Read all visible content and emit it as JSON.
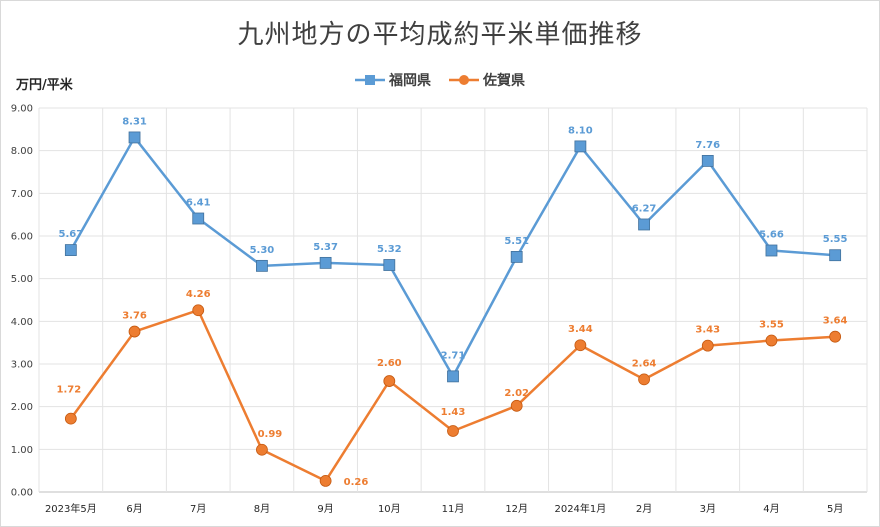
{
  "chart_data": {
    "type": "line",
    "title": "九州地方の平均成約平米単価推移",
    "ylabel": "万円/平米",
    "xlabel": "",
    "ylim": [
      0,
      9
    ],
    "yticks": [
      "0.00",
      "1.00",
      "2.00",
      "3.00",
      "4.00",
      "5.00",
      "6.00",
      "7.00",
      "8.00",
      "9.00"
    ],
    "grid": true,
    "legend_position": "top",
    "categories": [
      "2023年5月",
      "6月",
      "7月",
      "8月",
      "9月",
      "10月",
      "11月",
      "12月",
      "2024年1月",
      "2月",
      "3月",
      "4月",
      "5月"
    ],
    "series": [
      {
        "name": "福岡県",
        "color": "#5b9bd5",
        "marker": "square",
        "values": [
          5.67,
          8.31,
          6.41,
          5.3,
          5.37,
          5.32,
          2.71,
          5.51,
          8.1,
          6.27,
          7.76,
          5.66,
          5.55
        ],
        "labels": [
          "5.67",
          "8.31",
          "6.41",
          "5.30",
          "5.37",
          "5.32",
          "2.71",
          "5.51",
          "8.10",
          "6.27",
          "7.76",
          "5.66",
          "5.55"
        ]
      },
      {
        "name": "佐賀県",
        "color": "#ed7d31",
        "marker": "circle",
        "values": [
          1.72,
          3.76,
          4.26,
          0.99,
          0.26,
          2.6,
          1.43,
          2.02,
          3.44,
          2.64,
          3.43,
          3.55,
          3.64
        ],
        "labels": [
          "1.72",
          "3.76",
          "4.26",
          "0.99",
          "0.26",
          "2.60",
          "1.43",
          "2.02",
          "3.44",
          "2.64",
          "3.43",
          "3.55",
          "3.64"
        ]
      }
    ]
  }
}
